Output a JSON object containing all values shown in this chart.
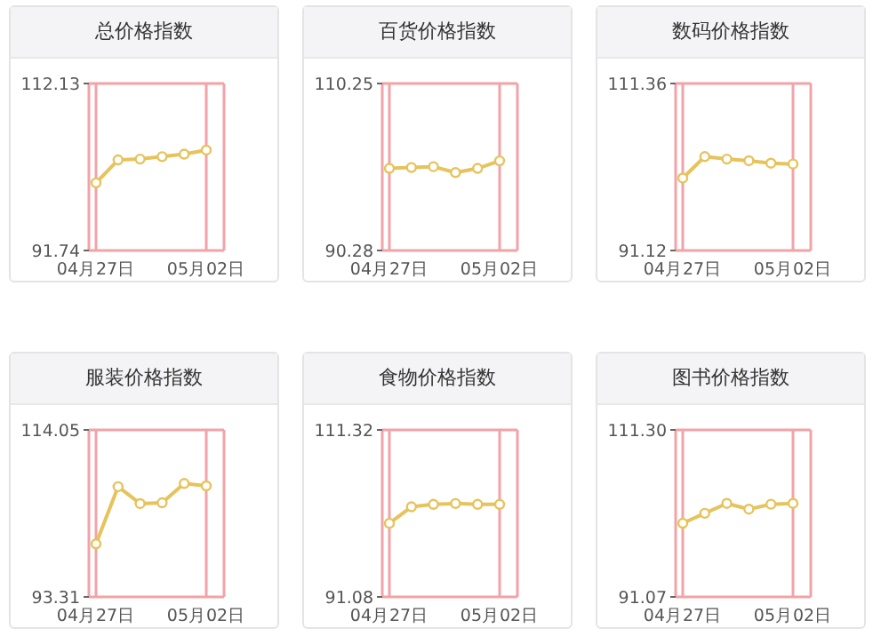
{
  "chart_data": [
    {
      "type": "line",
      "title": "总价格指数",
      "categories": [
        "04月27日",
        null,
        null,
        null,
        null,
        "05月02日"
      ],
      "series": [
        {
          "color": "#e6c35c",
          "values": [
            100.0,
            102.8,
            102.9,
            103.2,
            103.5,
            104.0
          ]
        }
      ],
      "ylim": [
        91.74,
        112.13
      ],
      "yticks": [
        91.74,
        112.13
      ],
      "grid": true,
      "marker": "circle",
      "line_style": "solid"
    },
    {
      "type": "line",
      "title": "百货价格指数",
      "categories": [
        "04月27日",
        null,
        null,
        null,
        null,
        "05月02日"
      ],
      "series": [
        {
          "color": "#e6c35c",
          "values": [
            100.1,
            100.2,
            100.3,
            99.6,
            100.1,
            101.0
          ]
        }
      ],
      "ylim": [
        90.28,
        110.25
      ],
      "yticks": [
        90.28,
        110.25
      ],
      "grid": true,
      "marker": "circle",
      "line_style": "solid"
    },
    {
      "type": "line",
      "title": "数码价格指数",
      "categories": [
        "04月27日",
        null,
        null,
        null,
        null,
        "05月02日"
      ],
      "series": [
        {
          "color": "#e6c35c",
          "values": [
            99.9,
            102.5,
            102.2,
            102.0,
            101.7,
            101.6
          ]
        }
      ],
      "ylim": [
        91.12,
        111.36
      ],
      "yticks": [
        91.12,
        111.36
      ],
      "grid": true,
      "marker": "circle",
      "line_style": "solid"
    },
    {
      "type": "line",
      "title": "服装价格指数",
      "categories": [
        "04月27日",
        null,
        null,
        null,
        null,
        "05月02日"
      ],
      "series": [
        {
          "color": "#e6c35c",
          "values": [
            99.9,
            107.0,
            104.9,
            105.0,
            107.4,
            107.1
          ]
        }
      ],
      "ylim": [
        93.31,
        114.05
      ],
      "yticks": [
        93.31,
        114.05
      ],
      "grid": true,
      "marker": "circle",
      "line_style": "solid"
    },
    {
      "type": "line",
      "title": "食物价格指数",
      "categories": [
        "04月27日",
        null,
        null,
        null,
        null,
        "05月02日"
      ],
      "series": [
        {
          "color": "#e6c35c",
          "values": [
            100.0,
            102.0,
            102.3,
            102.4,
            102.3,
            102.3
          ]
        }
      ],
      "ylim": [
        91.08,
        111.32
      ],
      "yticks": [
        91.08,
        111.32
      ],
      "grid": true,
      "marker": "circle",
      "line_style": "solid"
    },
    {
      "type": "line",
      "title": "图书价格指数",
      "categories": [
        "04月27日",
        null,
        null,
        null,
        null,
        "05月02日"
      ],
      "series": [
        {
          "color": "#e6c35c",
          "values": [
            100.0,
            101.2,
            102.4,
            101.7,
            102.3,
            102.4
          ]
        }
      ],
      "ylim": [
        91.07,
        111.3
      ],
      "yticks": [
        91.07,
        {
          "value": 111.3,
          "label": "111.30"
        }
      ],
      "grid": true,
      "marker": "circle",
      "line_style": "solid"
    }
  ]
}
